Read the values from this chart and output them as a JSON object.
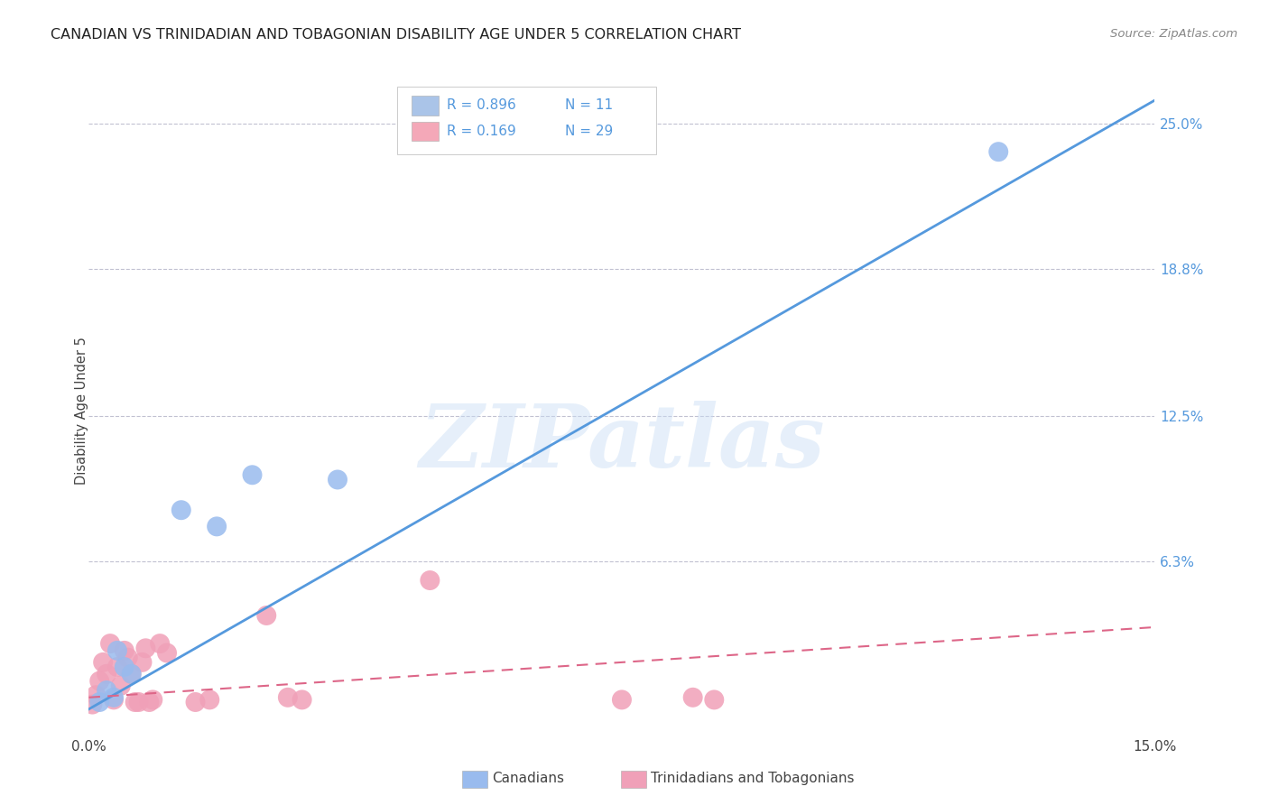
{
  "title": "CANADIAN VS TRINIDADIAN AND TOBAGONIAN DISABILITY AGE UNDER 5 CORRELATION CHART",
  "source": "Source: ZipAtlas.com",
  "ylabel_label": "Disability Age Under 5",
  "ylabel_ticks": [
    "6.3%",
    "12.5%",
    "18.8%",
    "25.0%"
  ],
  "ylabel_values": [
    6.3,
    12.5,
    18.8,
    25.0
  ],
  "grid_values": [
    6.3,
    12.5,
    18.8,
    25.0
  ],
  "xmin": 0.0,
  "xmax": 15.0,
  "ymin": -1.0,
  "ymax": 26.5,
  "legend_entries": [
    {
      "color": "#aac4e8",
      "R": "0.896",
      "N": "11"
    },
    {
      "color": "#f4a8b8",
      "R": "0.169",
      "N": "29"
    }
  ],
  "canadians_scatter": [
    [
      0.15,
      0.3
    ],
    [
      0.25,
      0.8
    ],
    [
      0.35,
      0.5
    ],
    [
      0.4,
      2.5
    ],
    [
      0.5,
      1.8
    ],
    [
      0.6,
      1.5
    ],
    [
      1.3,
      8.5
    ],
    [
      1.8,
      7.8
    ],
    [
      2.3,
      10.0
    ],
    [
      3.5,
      9.8
    ],
    [
      12.8,
      23.8
    ]
  ],
  "trinidadians_scatter": [
    [
      0.05,
      0.2
    ],
    [
      0.1,
      0.6
    ],
    [
      0.15,
      1.2
    ],
    [
      0.2,
      2.0
    ],
    [
      0.25,
      1.5
    ],
    [
      0.3,
      2.8
    ],
    [
      0.35,
      0.4
    ],
    [
      0.4,
      1.8
    ],
    [
      0.45,
      1.0
    ],
    [
      0.5,
      2.5
    ],
    [
      0.55,
      2.2
    ],
    [
      0.6,
      1.5
    ],
    [
      0.65,
      0.3
    ],
    [
      0.7,
      0.3
    ],
    [
      0.75,
      2.0
    ],
    [
      0.8,
      2.6
    ],
    [
      0.85,
      0.3
    ],
    [
      0.9,
      0.4
    ],
    [
      1.0,
      2.8
    ],
    [
      1.1,
      2.4
    ],
    [
      1.5,
      0.3
    ],
    [
      1.7,
      0.4
    ],
    [
      2.5,
      4.0
    ],
    [
      2.8,
      0.5
    ],
    [
      3.0,
      0.4
    ],
    [
      4.8,
      5.5
    ],
    [
      7.5,
      0.4
    ],
    [
      8.5,
      0.5
    ],
    [
      8.8,
      0.4
    ]
  ],
  "canadian_line_x": [
    0.0,
    15.0
  ],
  "canadian_line_y": [
    0.0,
    26.0
  ],
  "trinidadian_line_x": [
    0.0,
    15.0
  ],
  "trinidadian_line_y": [
    0.5,
    3.5
  ],
  "watermark_text": "ZIPatlas",
  "blue_line_color": "#5599dd",
  "blue_scatter_color": "#99bbee",
  "pink_line_color": "#dd6688",
  "pink_scatter_color": "#f0a0b8",
  "grid_color": "#bbbbcc",
  "bg_color": "#ffffff",
  "title_color": "#222222",
  "source_color": "#888888",
  "tick_color": "#5599dd",
  "bottom_label_color": "#444444"
}
